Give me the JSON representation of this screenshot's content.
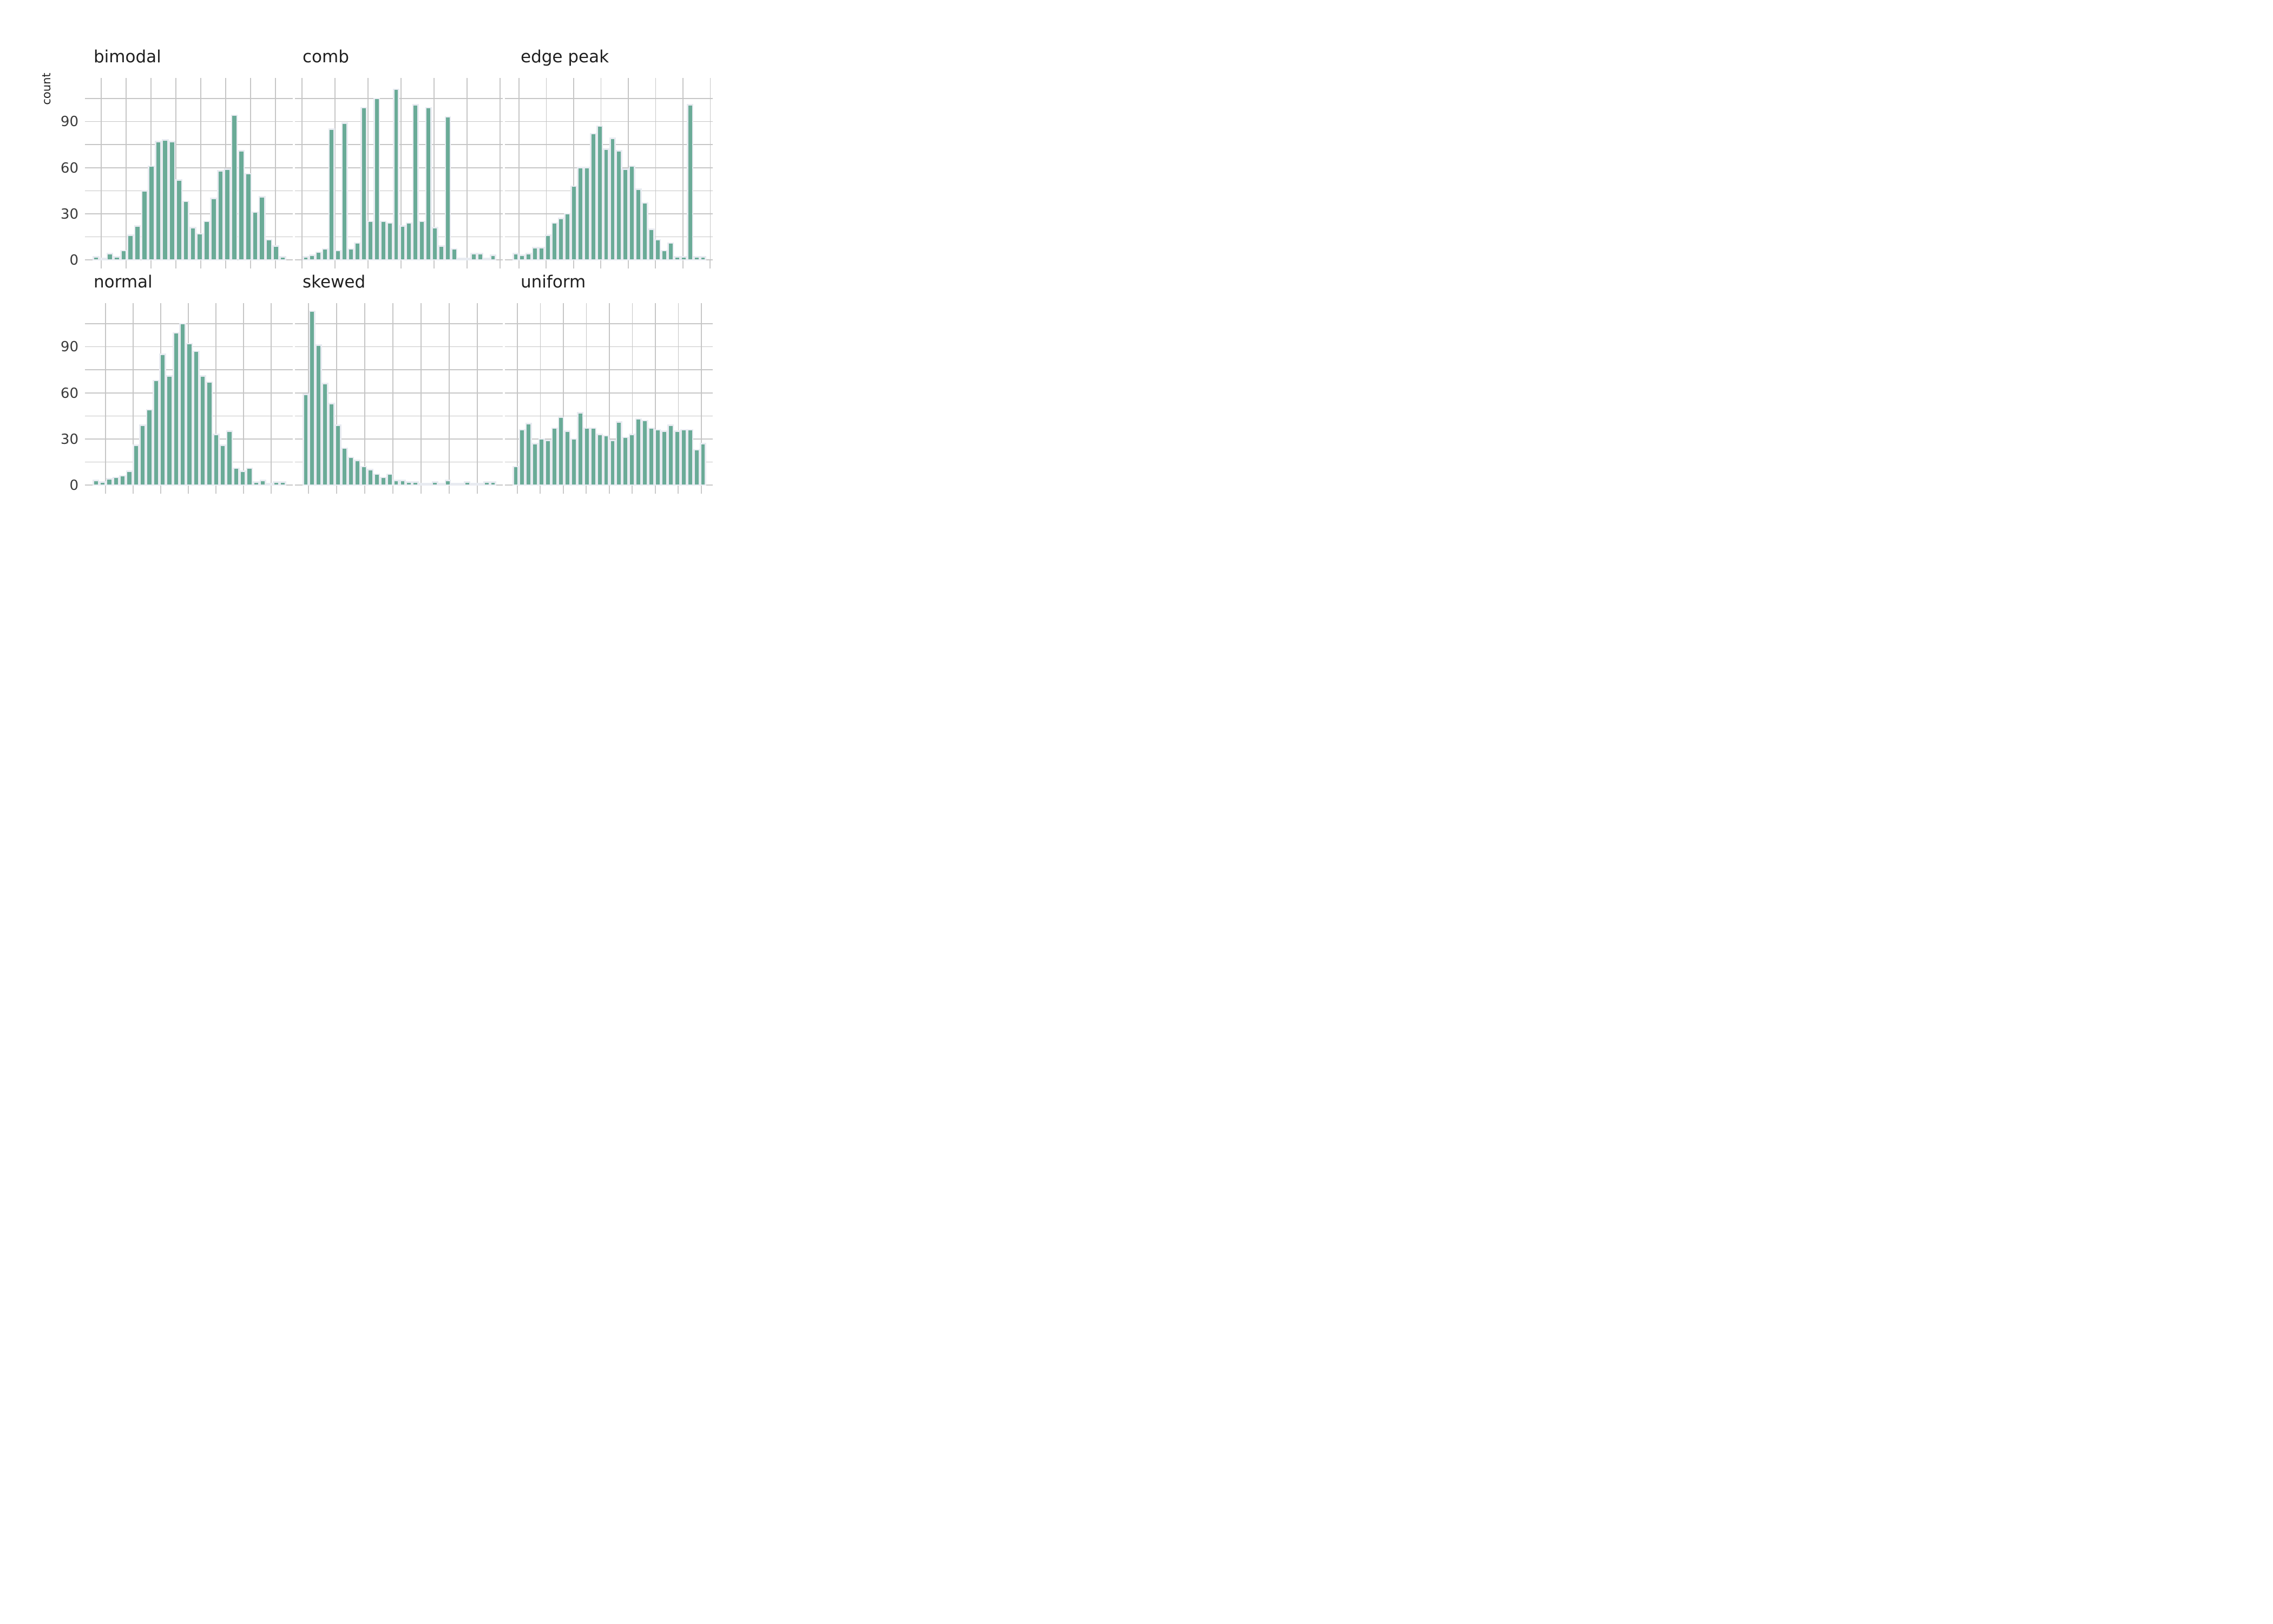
{
  "chart_data": {
    "type": "bar",
    "subtype": "faceted-histogram-grid",
    "layout_hint": "2 rows x 3 columns, shared y axis, white background, light gray grid on, no legend, no x tick labels",
    "ylabel": "count",
    "y_ticks": [
      0,
      30,
      60,
      90
    ],
    "y_gridline_step": 15,
    "y_axis_range": [
      0,
      119
    ],
    "x_tick_labels": [],
    "panels": [
      {
        "title": "bimodal",
        "values": [
          1,
          0,
          3,
          1,
          5,
          15,
          21,
          44,
          60,
          76,
          77,
          76,
          51,
          37,
          20,
          16,
          24,
          39,
          57,
          58,
          93,
          70,
          55,
          30,
          40,
          12,
          8,
          1
        ]
      },
      {
        "title": "comb",
        "values": [
          1,
          2,
          4,
          6,
          84,
          5,
          88,
          6,
          10,
          98,
          24,
          104,
          24,
          23,
          110,
          21,
          23,
          100,
          24,
          98,
          20,
          8,
          92,
          6,
          0,
          0,
          3,
          3,
          0,
          2
        ]
      },
      {
        "title": "edge peak",
        "values": [
          3,
          2,
          3,
          7,
          7,
          15,
          23,
          26,
          29,
          47,
          59,
          59,
          81,
          86,
          71,
          78,
          70,
          58,
          60,
          45,
          36,
          19,
          12,
          5,
          10,
          1,
          1,
          100,
          1,
          1
        ]
      },
      {
        "title": "normal",
        "values": [
          2,
          1,
          3,
          4,
          5,
          8,
          25,
          38,
          48,
          67,
          84,
          70,
          98,
          104,
          91,
          86,
          70,
          66,
          32,
          25,
          34,
          10,
          8,
          10,
          1,
          2,
          0,
          1,
          1
        ]
      },
      {
        "title": "skewed",
        "values": [
          58,
          112,
          90,
          65,
          52,
          38,
          23,
          17,
          15,
          11,
          9,
          6,
          4,
          6,
          2,
          2,
          1,
          1,
          0,
          0,
          1,
          0,
          2,
          0,
          0,
          1,
          0,
          0,
          1,
          1
        ]
      },
      {
        "title": "uniform",
        "values": [
          11,
          35,
          39,
          26,
          29,
          28,
          36,
          43,
          34,
          29,
          46,
          36,
          36,
          32,
          31,
          28,
          40,
          30,
          32,
          42,
          41,
          36,
          35,
          34,
          38,
          34,
          35,
          35,
          22,
          26
        ]
      }
    ],
    "colors": {
      "bar_fill": "#6aab97",
      "bar_edge": "#e8ebf1",
      "gridline": "#c6c6c6",
      "tick_label": "#3b3b3b",
      "title": "#1f1f1f",
      "background": "#ffffff"
    }
  }
}
